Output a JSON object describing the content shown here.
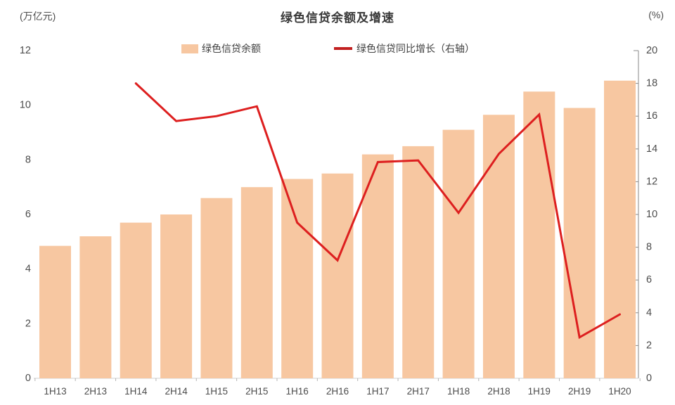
{
  "chart": {
    "title": "绿色信贷余额及增速",
    "left_unit": "(万亿元)",
    "right_unit": "(%)"
  },
  "chart_data": {
    "type": "bar",
    "title": "绿色信贷余额及增速",
    "categories": [
      "1H13",
      "2H13",
      "1H14",
      "2H14",
      "1H15",
      "2H15",
      "1H16",
      "2H16",
      "1H17",
      "2H17",
      "1H18",
      "2H18",
      "1H19",
      "2H19",
      "1H20"
    ],
    "series": [
      {
        "name": "绿色信贷余额",
        "type": "bar",
        "axis": "left",
        "color": "#F7C7A1",
        "values": [
          4.85,
          5.2,
          5.7,
          6.0,
          6.6,
          7.0,
          7.3,
          7.5,
          8.2,
          8.5,
          9.1,
          9.65,
          10.5,
          9.9,
          10.9
        ]
      },
      {
        "name": "绿色信贷同比增长（右轴）",
        "type": "line",
        "axis": "right",
        "color": "#DD1F1F",
        "values": [
          null,
          null,
          18.0,
          15.7,
          16.0,
          16.6,
          9.5,
          7.2,
          13.2,
          13.3,
          10.1,
          13.7,
          16.1,
          2.5,
          3.9
        ]
      }
    ],
    "left_axis": {
      "label": "(万亿元)",
      "min": 0,
      "max": 12,
      "step": 2,
      "ticks": [
        0,
        2,
        4,
        6,
        8,
        10,
        12
      ]
    },
    "right_axis": {
      "label": "(%)",
      "min": 0,
      "max": 20,
      "step": 2,
      "ticks": [
        0,
        2,
        4,
        6,
        8,
        10,
        12,
        14,
        16,
        18,
        20
      ]
    },
    "grid": false,
    "legend_position": "top"
  }
}
